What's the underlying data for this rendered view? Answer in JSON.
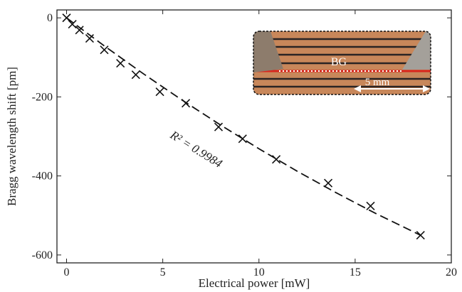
{
  "chart_data": {
    "type": "scatter",
    "xlabel": "Electrical power [mW]",
    "ylabel": "Bragg wavelength shift [pm]",
    "x": [
      0,
      0.3,
      0.67,
      1.2,
      1.96,
      2.8,
      3.6,
      4.85,
      6.2,
      7.9,
      9.15,
      10.9,
      13.6,
      15.8,
      18.4
    ],
    "values": [
      0,
      -16,
      -31,
      -52,
      -81,
      -115,
      -144,
      -187,
      -216,
      -276,
      -306,
      -358,
      -418,
      -476,
      -550
    ],
    "color": "#111111",
    "fit": {
      "x": [
        0,
        2,
        4,
        6,
        8,
        10,
        12,
        14,
        16,
        18.4
      ],
      "values": [
        0,
        -72.4,
        -141.7,
        -207.9,
        -271.1,
        -331.2,
        -388.4,
        -442.2,
        -493.2,
        -550.2
      ],
      "style": "dashed"
    },
    "annotation": "R² = 0.9984",
    "inset_labels": [
      "BG",
      "5 mm"
    ],
    "xlim": [
      -0.5,
      20
    ],
    "ylim": [
      -620,
      20
    ],
    "xticks": [
      0,
      5,
      10,
      15,
      20
    ],
    "yticks": [
      0,
      -200,
      -400,
      -600
    ],
    "grid": false
  }
}
